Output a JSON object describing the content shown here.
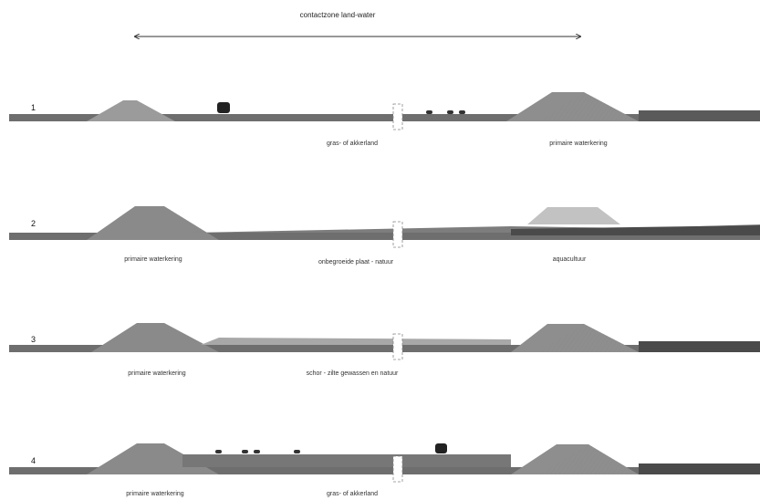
{
  "title": "contactzone land-water",
  "colors": {
    "ground": "#6e6e6e",
    "dike_light": "#9b9b9b",
    "dike_dark": "#7a7a7a",
    "aquaculture": "#c2c2c2",
    "water": "#4a4a4a",
    "marsh": "#a8a8a8"
  },
  "rows": [
    {
      "number": "1",
      "labels": [
        "gras- of akkerland",
        "primaire waterkering"
      ]
    },
    {
      "number": "2",
      "labels": [
        "primaire waterkering",
        "onbegroeide plaat - natuur",
        "aquacultuur"
      ]
    },
    {
      "number": "3",
      "labels": [
        "primaire waterkering",
        "schor - zilte gewassen en natuur"
      ]
    },
    {
      "number": "4",
      "labels": [
        "primaire waterkering",
        "gras- of akkerland"
      ]
    }
  ]
}
